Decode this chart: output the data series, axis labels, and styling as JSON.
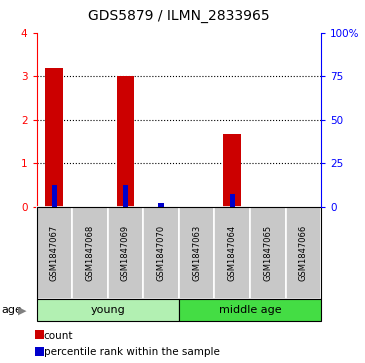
{
  "title": "GDS5879 / ILMN_2833965",
  "samples": [
    "GSM1847067",
    "GSM1847068",
    "GSM1847069",
    "GSM1847070",
    "GSM1847063",
    "GSM1847064",
    "GSM1847065",
    "GSM1847066"
  ],
  "count_values": [
    3.18,
    0.0,
    3.0,
    0.0,
    0.0,
    1.68,
    0.0,
    0.0
  ],
  "percentile_values": [
    12.5,
    0.0,
    12.5,
    2.5,
    0.0,
    7.5,
    0.0,
    0.0
  ],
  "groups": [
    {
      "label": "young",
      "indices": [
        0,
        1,
        2,
        3
      ],
      "color": "#b2f0b2"
    },
    {
      "label": "middle age",
      "indices": [
        4,
        5,
        6,
        7
      ],
      "color": "#44dd44"
    }
  ],
  "ylim_left": [
    0,
    4
  ],
  "ylim_right": [
    0,
    100
  ],
  "yticks_left": [
    0,
    1,
    2,
    3,
    4
  ],
  "yticks_right": [
    0,
    25,
    50,
    75,
    100
  ],
  "ytick_labels_right": [
    "0",
    "25",
    "50",
    "75",
    "100%"
  ],
  "bar_color_red": "#cc0000",
  "bar_color_blue": "#0000cc",
  "bg_color_gray": "#c8c8c8",
  "title_fontsize": 10,
  "grid_color": "black"
}
